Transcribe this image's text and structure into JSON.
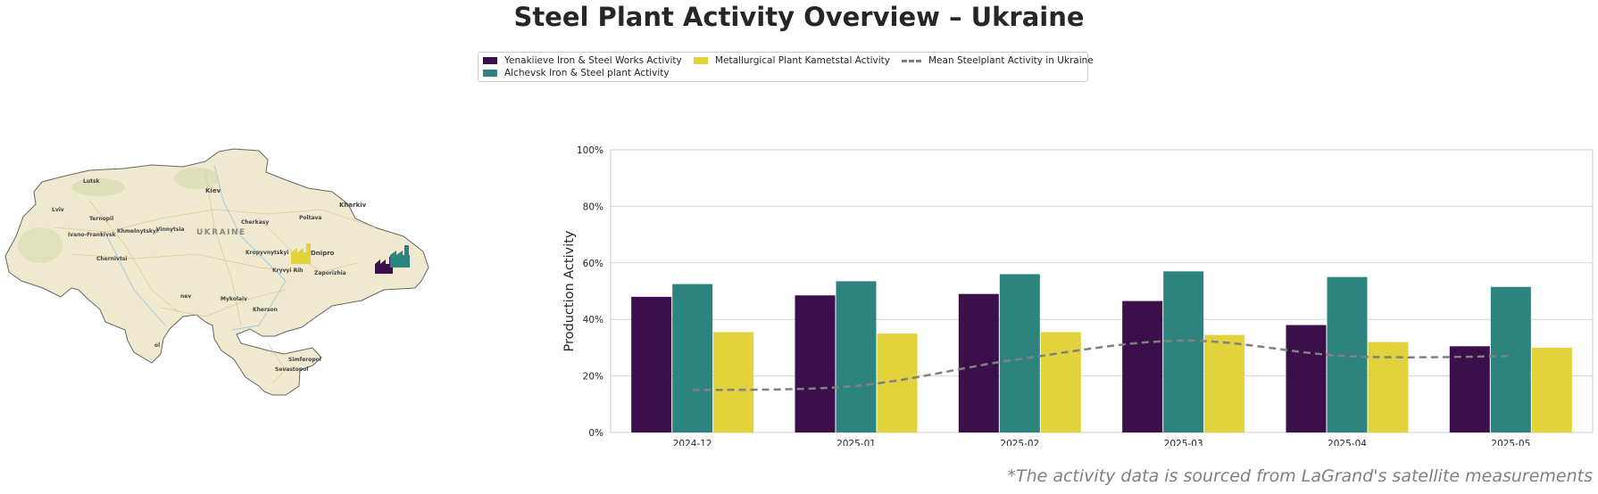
{
  "title": "Steel Plant Activity Overview – Ukraine",
  "footnote": "*The activity data is sourced from LaGrand's satellite measurements",
  "legend": {
    "items": [
      {
        "label": "Yenakiieve Iron & Steel Works Activity",
        "color": "#3b0f4a",
        "kind": "bar"
      },
      {
        "label": "Alchevsk Iron & Steel plant Activity",
        "color": "#2d837e",
        "kind": "bar"
      },
      {
        "label": "Metallurgical Plant Kametstal Activity",
        "color": "#e2d33c",
        "kind": "bar"
      },
      {
        "label": "Mean Steelplant Activity in Ukraine",
        "color": "#808080",
        "kind": "line"
      }
    ]
  },
  "map": {
    "country_label": "UKRAINE",
    "cities": [
      "Lutsk",
      "Kiev",
      "Kharkiv",
      "Lviv",
      "Ternopil",
      "Khmelnytskyi",
      "Vinnytsia",
      "Cherkasy",
      "Poltava",
      "Ivano-Frankivsk",
      "Chernivtsi",
      "Kropyvnytskyi",
      "Dnipro",
      "Kryvyi Rih",
      "Zaporizhia",
      "Mykolaiv",
      "Kherson",
      "Simferopol",
      "Sevastopol",
      "nev",
      "ol"
    ],
    "plant_colors": [
      "#e2d33c",
      "#3b0f4a",
      "#2d837e"
    ]
  },
  "chart_data": {
    "type": "bar",
    "ylabel": "Production Activity",
    "ylim": [
      0,
      100
    ],
    "yticks": [
      "0%",
      "20%",
      "40%",
      "60%",
      "80%",
      "100%"
    ],
    "categories": [
      "2024-12",
      "2025-01",
      "2025-02",
      "2025-03",
      "2025-04",
      "2025-05"
    ],
    "series": [
      {
        "name": "Yenakiieve Iron & Steel Works Activity",
        "color": "#3b0f4a",
        "values": [
          48,
          48.5,
          49,
          46.5,
          38,
          30.5
        ]
      },
      {
        "name": "Alchevsk Iron & Steel plant Activity",
        "color": "#2d837e",
        "values": [
          52.5,
          53.5,
          56,
          57,
          55,
          51.5
        ]
      },
      {
        "name": "Metallurgical Plant Kametstal Activity",
        "color": "#e2d33c",
        "values": [
          35.5,
          35,
          35.5,
          34.5,
          32,
          30
        ]
      }
    ],
    "mean_line": {
      "name": "Mean Steelplant Activity in Ukraine",
      "color": "#808080",
      "values": [
        15,
        16.5,
        26,
        32.5,
        27,
        27
      ]
    },
    "grid": true,
    "legend_position": "top-center"
  }
}
